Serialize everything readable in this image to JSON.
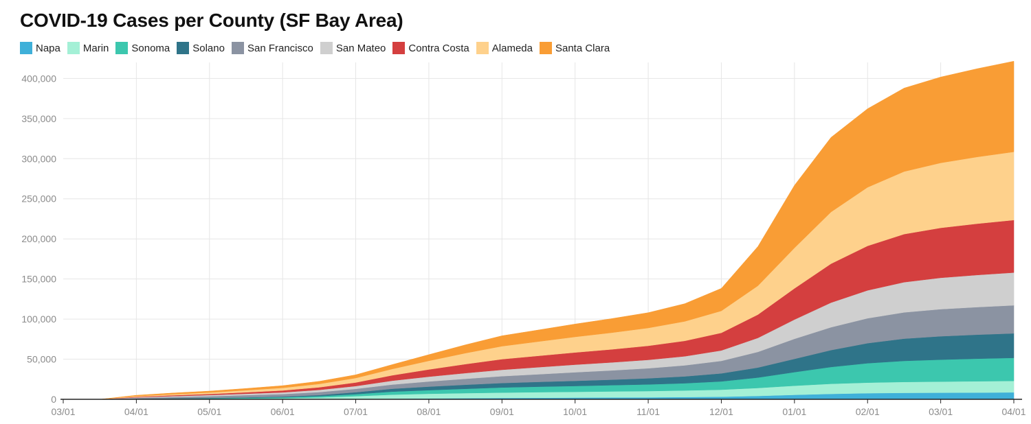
{
  "colors": {
    "Napa": "#3fb0d9",
    "Marin": "#a4f0d6",
    "Sonoma": "#3cc7ae",
    "Solano": "#2f7489",
    "San Francisco": "#8b93a2",
    "San Mateo": "#cfcfcf",
    "Contra Costa": "#d43f3f",
    "Alameda": "#fed18c",
    "Santa Clara": "#f99d35",
    "grid": "#e6e6e6",
    "axis": "#222222"
  },
  "chart_data": {
    "type": "area",
    "stacked": true,
    "title": "COVID-19 Cases per County (SF Bay Area)",
    "xlabel": "",
    "ylabel": "",
    "legend_position": "top-left",
    "grid": true,
    "ylim": [
      0,
      420000
    ],
    "y_ticks": [
      0,
      50000,
      100000,
      150000,
      200000,
      250000,
      300000,
      350000,
      400000
    ],
    "y_tick_labels": [
      "0",
      "50,000",
      "100,000",
      "150,000",
      "200,000",
      "250,000",
      "300,000",
      "350,000",
      "400,000"
    ],
    "x_tick_labels": [
      "03/01",
      "04/01",
      "05/01",
      "06/01",
      "07/01",
      "08/01",
      "09/01",
      "10/01",
      "11/01",
      "12/01",
      "01/01",
      "02/01",
      "03/01",
      "04/01"
    ],
    "x": [
      "03/01",
      "03/16",
      "04/01",
      "04/16",
      "05/01",
      "05/16",
      "06/01",
      "06/16",
      "07/01",
      "07/16",
      "08/01",
      "08/16",
      "09/01",
      "09/16",
      "10/01",
      "10/16",
      "11/01",
      "11/16",
      "12/01",
      "12/16",
      "01/01",
      "01/16",
      "02/01",
      "02/16",
      "03/01",
      "03/16",
      "04/01"
    ],
    "series": [
      {
        "name": "Napa",
        "values": [
          0,
          0,
          60,
          100,
          130,
          160,
          200,
          300,
          500,
          800,
          1100,
          1400,
          1700,
          1900,
          2100,
          2300,
          2500,
          2800,
          3200,
          4200,
          5600,
          6800,
          7600,
          8000,
          8200,
          8400,
          8600
        ]
      },
      {
        "name": "Marin",
        "values": [
          0,
          0,
          200,
          400,
          600,
          900,
          1200,
          2000,
          3400,
          5000,
          5800,
          6300,
          6700,
          7000,
          7200,
          7500,
          7800,
          8200,
          8800,
          9900,
          11300,
          12500,
          13200,
          13600,
          13900,
          14100,
          14300
        ]
      },
      {
        "name": "Sonoma",
        "values": [
          0,
          0,
          200,
          350,
          550,
          800,
          1100,
          1600,
          2500,
          3800,
          4500,
          5400,
          6300,
          6800,
          7300,
          7800,
          8300,
          9000,
          10300,
          13000,
          17000,
          21000,
          24200,
          26300,
          27300,
          28100,
          28800
        ]
      },
      {
        "name": "Solano",
        "values": [
          0,
          0,
          250,
          400,
          500,
          650,
          900,
          1400,
          2400,
          3600,
          4400,
          5000,
          5600,
          6000,
          6400,
          6900,
          7600,
          8600,
          10000,
          12500,
          16500,
          21000,
          25000,
          27700,
          29200,
          30000,
          30500
        ]
      },
      {
        "name": "San Francisco",
        "values": [
          0,
          0,
          1000,
          1600,
          2100,
          2700,
          3100,
          3700,
          4200,
          5200,
          6400,
          7500,
          8500,
          9500,
          10700,
          11500,
          12500,
          13700,
          15600,
          19500,
          25000,
          28500,
          31000,
          32800,
          33800,
          34400,
          35000
        ]
      },
      {
        "name": "San Mateo",
        "values": [
          0,
          0,
          700,
          1100,
          1400,
          1700,
          2100,
          2700,
          3500,
          4800,
          6000,
          7100,
          8000,
          8800,
          9500,
          10000,
          10500,
          11300,
          13000,
          17500,
          24000,
          30700,
          34800,
          37600,
          39100,
          40000,
          40800
        ]
      },
      {
        "name": "Contra Costa",
        "values": [
          0,
          0,
          700,
          1100,
          1400,
          1800,
          2400,
          3300,
          4500,
          6700,
          9000,
          11200,
          13200,
          14200,
          15200,
          16300,
          17500,
          19300,
          22000,
          29000,
          38800,
          48500,
          55500,
          60000,
          62300,
          64000,
          65500
        ]
      },
      {
        "name": "Alameda",
        "values": [
          0,
          0,
          800,
          1300,
          1800,
          2600,
          3300,
          4200,
          5500,
          7900,
          10800,
          13700,
          16200,
          17800,
          19400,
          20800,
          22300,
          24300,
          27400,
          36000,
          50500,
          64500,
          73000,
          78000,
          81000,
          83200,
          85000
        ]
      },
      {
        "name": "Santa Clara",
        "values": [
          0,
          0,
          1100,
          1500,
          1800,
          2200,
          2700,
          3200,
          4000,
          5500,
          7700,
          10300,
          13000,
          14500,
          16000,
          17500,
          19000,
          22000,
          28000,
          49000,
          78000,
          93000,
          98000,
          104000,
          107000,
          110000,
          113000
        ]
      }
    ]
  }
}
